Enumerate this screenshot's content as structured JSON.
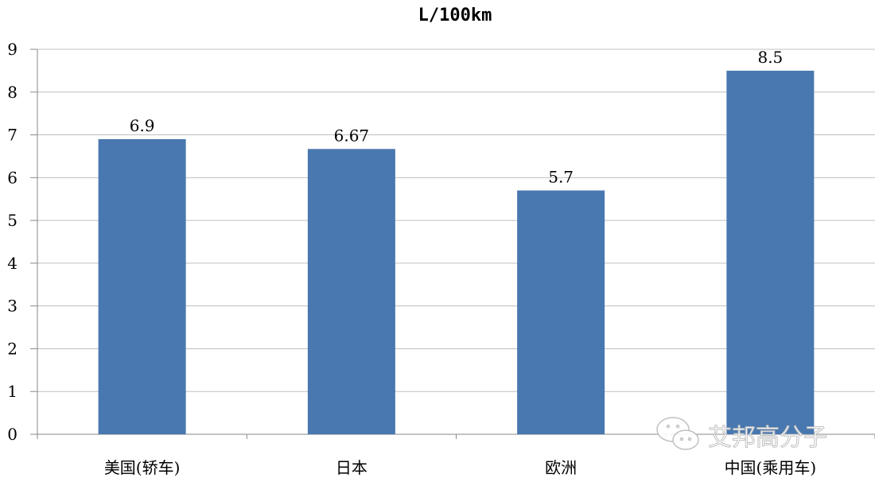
{
  "chart_data": {
    "type": "bar",
    "title": "L/100km",
    "categories": [
      "美国(轿车)",
      "日本",
      "欧洲",
      "中国(乘用车)"
    ],
    "values": [
      6.9,
      6.67,
      5.7,
      8.5
    ],
    "data_labels": [
      "6.9",
      "6.67",
      "5.7",
      "8.5"
    ],
    "xlabel": "",
    "ylabel": "",
    "ylim": [
      0,
      9
    ],
    "yticks": [
      "0",
      "1",
      "2",
      "3",
      "4",
      "5",
      "6",
      "7",
      "8",
      "9"
    ],
    "grid": true,
    "legend": "none",
    "bar_color": "#4878AF",
    "grid_color": "#BFBFBF"
  },
  "watermark": {
    "text": "艾邦高分子",
    "icon": "wechat-icon"
  }
}
